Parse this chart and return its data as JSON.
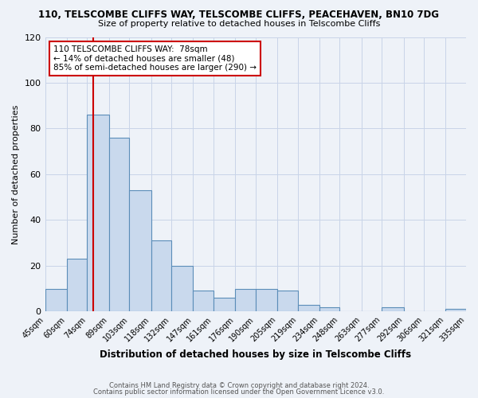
{
  "title": "110, TELSCOMBE CLIFFS WAY, TELSCOMBE CLIFFS, PEACEHAVEN, BN10 7DG",
  "subtitle": "Size of property relative to detached houses in Telscombe Cliffs",
  "xlabel": "Distribution of detached houses by size in Telscombe Cliffs",
  "ylabel": "Number of detached properties",
  "bin_edges": [
    45,
    60,
    74,
    89,
    103,
    118,
    132,
    147,
    161,
    176,
    190,
    205,
    219,
    234,
    248,
    263,
    277,
    292,
    306,
    321,
    335
  ],
  "bin_labels": [
    "45sqm",
    "60sqm",
    "74sqm",
    "89sqm",
    "103sqm",
    "118sqm",
    "132sqm",
    "147sqm",
    "161sqm",
    "176sqm",
    "190sqm",
    "205sqm",
    "219sqm",
    "234sqm",
    "248sqm",
    "263sqm",
    "277sqm",
    "292sqm",
    "306sqm",
    "321sqm",
    "335sqm"
  ],
  "counts": [
    10,
    23,
    86,
    76,
    53,
    31,
    20,
    9,
    6,
    10,
    10,
    9,
    3,
    2,
    0,
    0,
    2,
    0,
    0,
    1
  ],
  "bar_facecolor": "#c9d9ed",
  "bar_edgecolor": "#5b8db8",
  "vline_x": 78,
  "vline_color": "#cc0000",
  "ylim": [
    0,
    120
  ],
  "yticks": [
    0,
    20,
    40,
    60,
    80,
    100,
    120
  ],
  "annotation_title": "110 TELSCOMBE CLIFFS WAY:  78sqm",
  "annotation_line1": "← 14% of detached houses are smaller (48)",
  "annotation_line2": "85% of semi-detached houses are larger (290) →",
  "footer1": "Contains HM Land Registry data © Crown copyright and database right 2024.",
  "footer2": "Contains public sector information licensed under the Open Government Licence v3.0.",
  "background_color": "#eef2f8",
  "grid_color": "#c8d4e8"
}
